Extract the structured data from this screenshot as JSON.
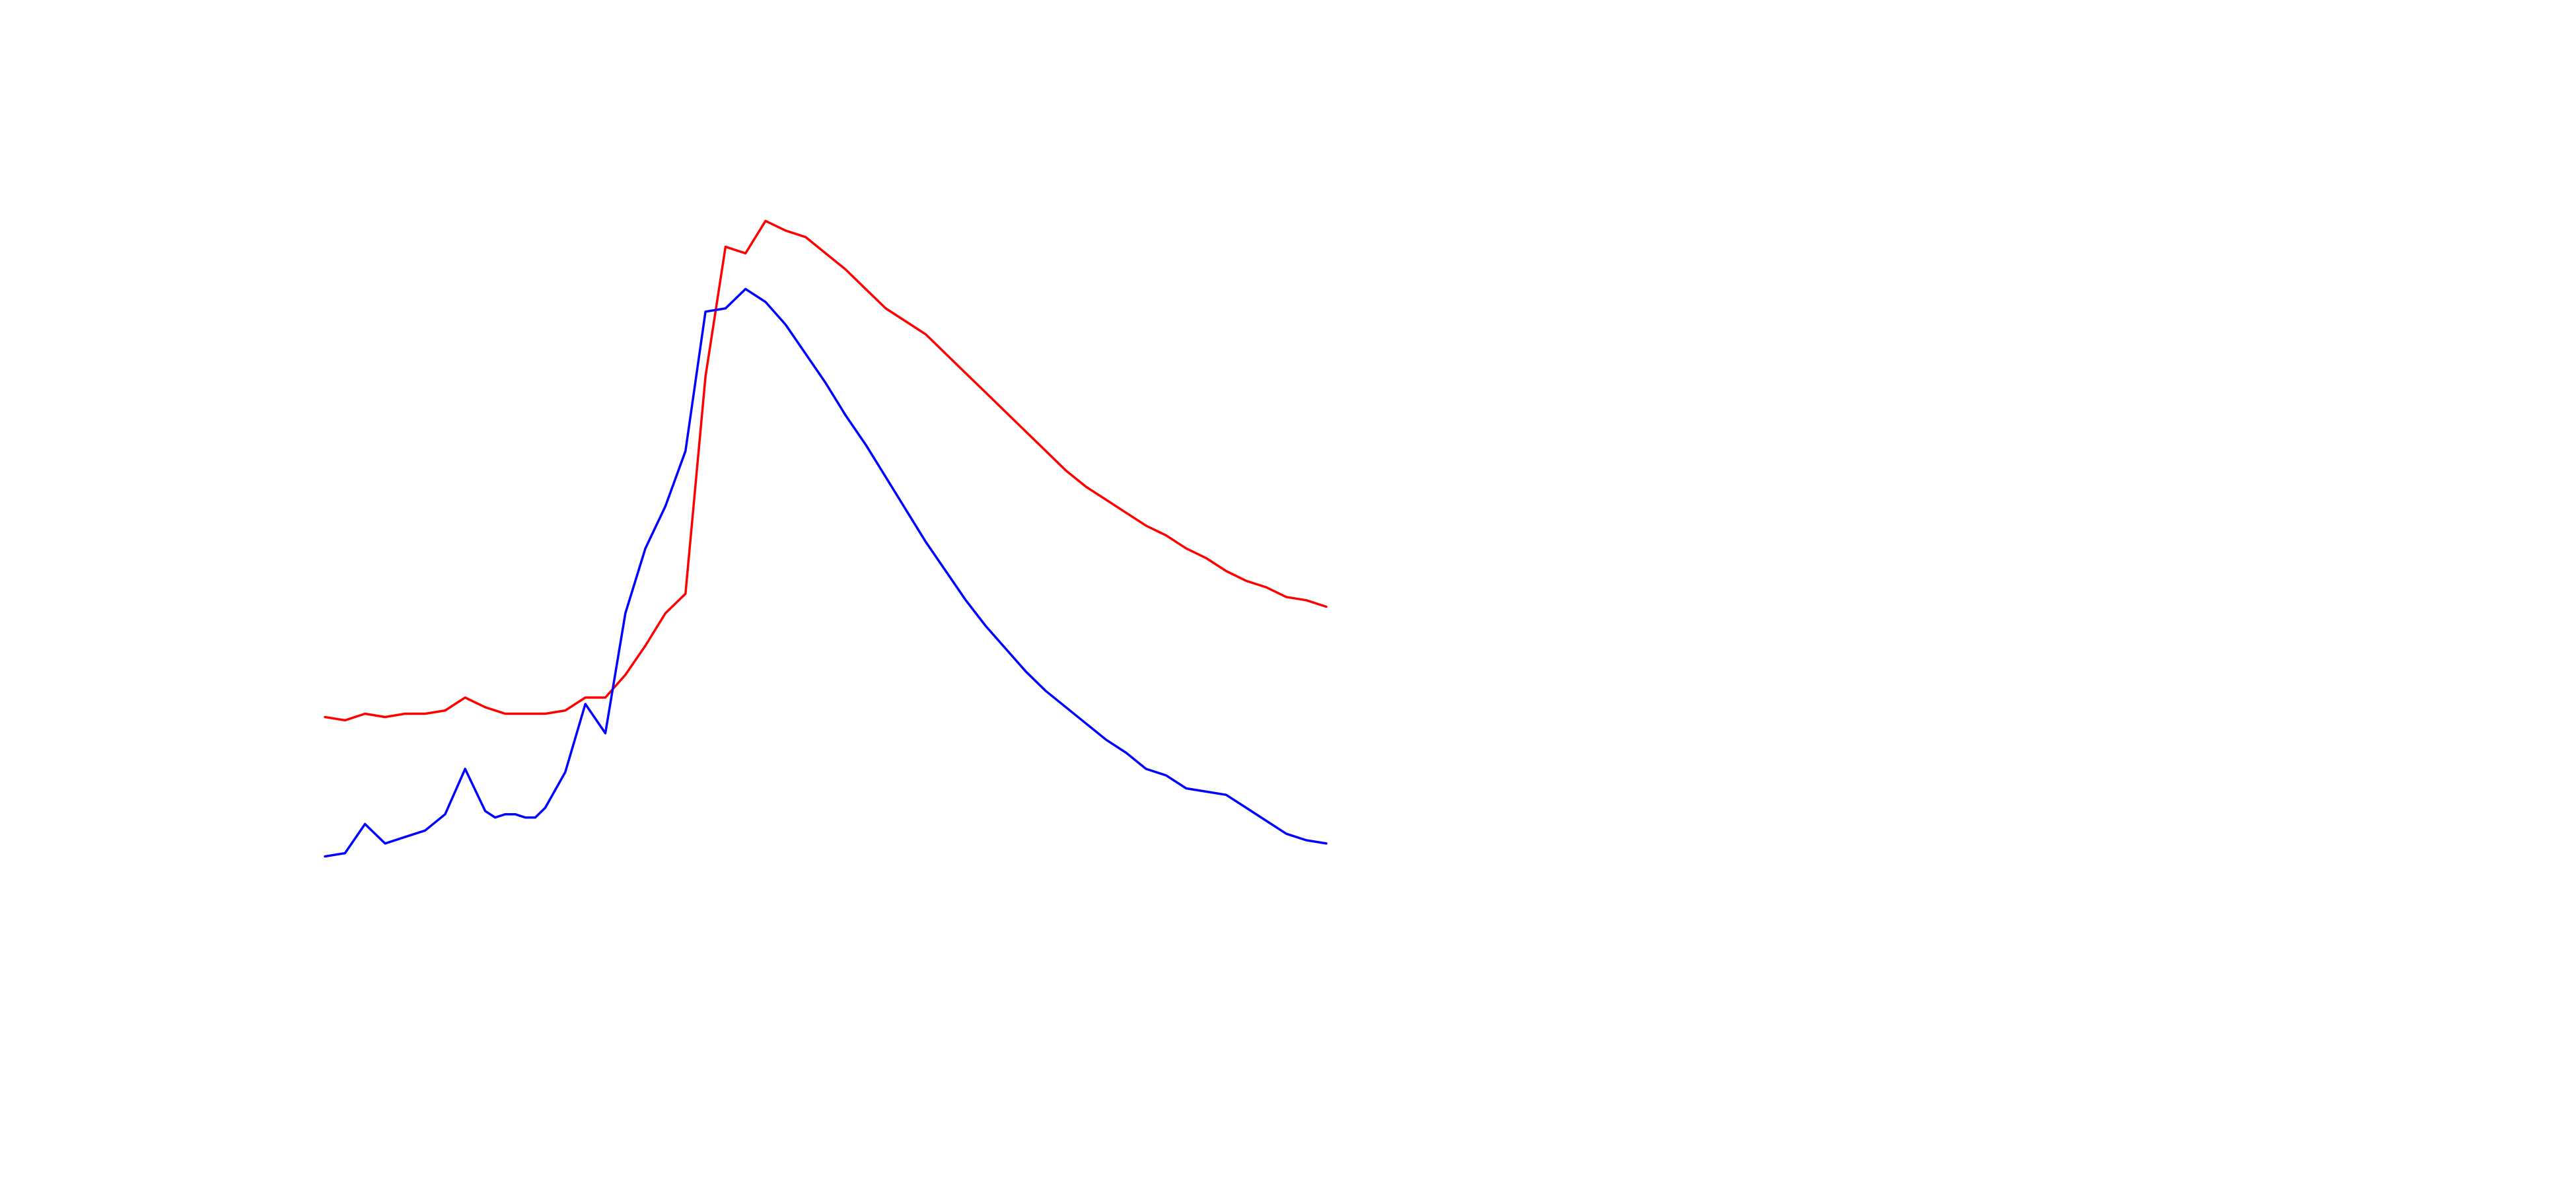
{
  "chart_data": {
    "type": "line",
    "title": "",
    "xlabel": "",
    "ylabel": "",
    "grid": false,
    "axes_visible": false,
    "legend": "none",
    "x": [
      0,
      2,
      4,
      6,
      8,
      10,
      12,
      14,
      16,
      17,
      18,
      19,
      20,
      21,
      22,
      24,
      26,
      28,
      30,
      32,
      34,
      36,
      38,
      40,
      42,
      44,
      46,
      48,
      50,
      52,
      54,
      56,
      58,
      60,
      62,
      64,
      66,
      68,
      70,
      72,
      74,
      76,
      78,
      80,
      82,
      84,
      86,
      88,
      90,
      92,
      94,
      96,
      98,
      100
    ],
    "series": [
      {
        "color": "#ff0000",
        "values": [
          0.4,
          0.39,
          0.41,
          0.4,
          0.41,
          0.41,
          0.42,
          0.46,
          0.43,
          0.42,
          0.41,
          0.41,
          0.41,
          0.41,
          0.41,
          0.42,
          0.46,
          0.46,
          0.53,
          0.62,
          0.72,
          0.78,
          1.45,
          1.85,
          1.83,
          1.93,
          1.9,
          1.88,
          1.83,
          1.78,
          1.72,
          1.66,
          1.62,
          1.58,
          1.52,
          1.46,
          1.4,
          1.34,
          1.28,
          1.22,
          1.16,
          1.11,
          1.07,
          1.03,
          0.99,
          0.96,
          0.92,
          0.89,
          0.85,
          0.82,
          0.8,
          0.77,
          0.76,
          0.74
        ]
      },
      {
        "color": "#0000ff",
        "values": [
          -0.03,
          -0.02,
          0.07,
          0.01,
          0.03,
          0.05,
          0.1,
          0.24,
          0.11,
          0.09,
          0.1,
          0.1,
          0.09,
          0.09,
          0.12,
          0.23,
          0.44,
          0.35,
          0.72,
          0.92,
          1.05,
          1.22,
          1.65,
          1.66,
          1.72,
          1.68,
          1.61,
          1.52,
          1.43,
          1.33,
          1.24,
          1.14,
          1.04,
          0.94,
          0.85,
          0.76,
          0.68,
          0.61,
          0.54,
          0.48,
          0.43,
          0.38,
          0.33,
          0.29,
          0.24,
          0.22,
          0.18,
          0.17,
          0.16,
          0.12,
          0.08,
          0.04,
          0.02,
          0.01
        ]
      }
    ]
  }
}
